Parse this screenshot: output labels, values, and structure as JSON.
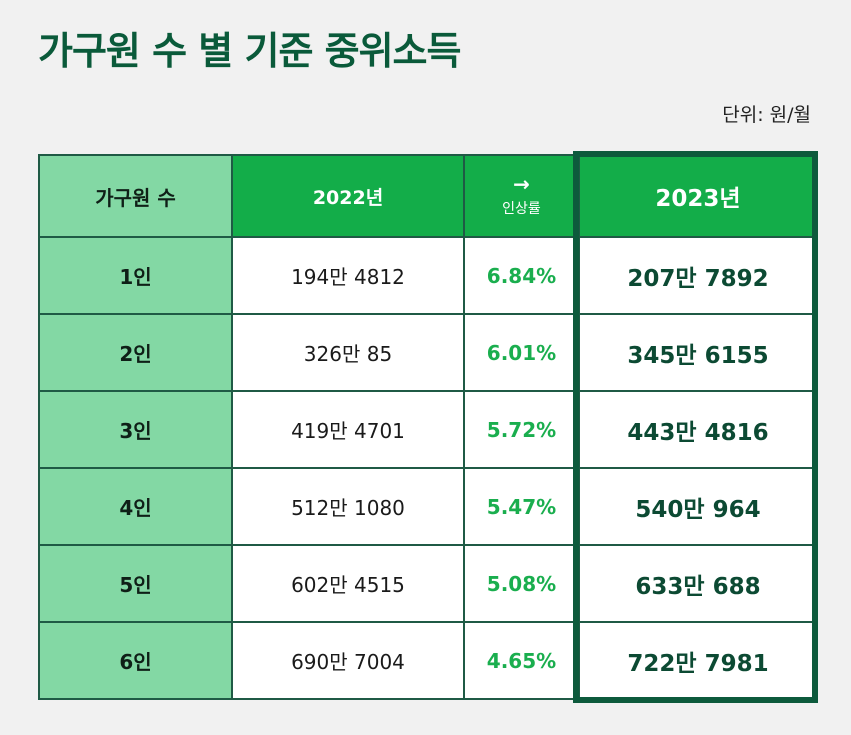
{
  "title": "가구원 수 별 기준 중위소득",
  "unit": "단위: 원/월",
  "headers": {
    "household_size": "가구원 수",
    "y2022": "2022년",
    "rate_arrow": "→",
    "rate_label": "인상률",
    "y2023": "2023년"
  },
  "rows": [
    {
      "size": "1인",
      "y2022": "194만 4812",
      "rate": "6.84%",
      "y2023": "207만 7892"
    },
    {
      "size": "2인",
      "y2022": "326만 85",
      "rate": "6.01%",
      "y2023": "345만 6155"
    },
    {
      "size": "3인",
      "y2022": "419만 4701",
      "rate": "5.72%",
      "y2023": "443만 4816"
    },
    {
      "size": "4인",
      "y2022": "512만 1080",
      "rate": "5.47%",
      "y2023": "540만 964"
    },
    {
      "size": "5인",
      "y2022": "602만 4515",
      "rate": "5.08%",
      "y2023": "633만 688"
    },
    {
      "size": "6인",
      "y2022": "690만 7004",
      "rate": "4.65%",
      "y2023": "722만 7981"
    }
  ],
  "colors": {
    "title": "#0a5a3a",
    "header_green": "#13ad49",
    "first_col": "#83d8a4",
    "rate_text": "#1aae4e",
    "border": "#1f5a45",
    "highlight": "#0d5a3c"
  }
}
